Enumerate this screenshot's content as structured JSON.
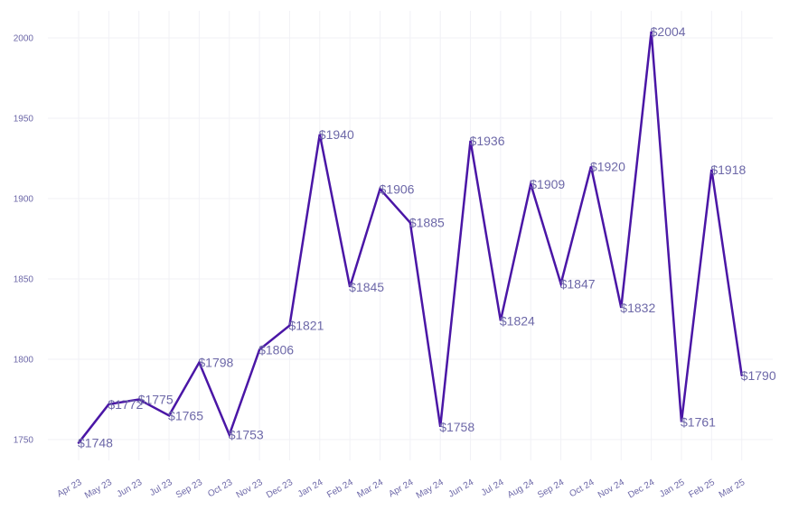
{
  "chart_data": {
    "type": "line",
    "title": "",
    "xlabel": "",
    "ylabel": "",
    "categories": [
      "Apr 23",
      "May 23",
      "Jun 23",
      "Jul 23",
      "Sep 23",
      "Oct 23",
      "Nov 23",
      "Dec 23",
      "Jan 24",
      "Feb 24",
      "Mar 24",
      "Apr 24",
      "May 24",
      "Jun 24",
      "Jul 24",
      "Aug 24",
      "Sep 24",
      "Oct 24",
      "Nov 24",
      "Dec 24",
      "Jan 25",
      "Feb 25",
      "Mar 25"
    ],
    "series": [
      {
        "values": [
          1748,
          1772,
          1775,
          1765,
          1798,
          1753,
          1806,
          1821,
          1940,
          1845,
          1906,
          1885,
          1758,
          1936,
          1824,
          1909,
          1847,
          1920,
          1832,
          2004,
          1761,
          1918,
          1790
        ],
        "color": "#4a16a6"
      }
    ],
    "data_labels": [
      "$1748",
      "$1772",
      "$1775",
      "$1765",
      "$1798",
      "$1753",
      "$1806",
      "$1821",
      "$1940",
      "$1845",
      "$1906",
      "$1885",
      "$1758",
      "$1936",
      "$1824",
      "$1909",
      "$1847",
      "$1920",
      "$1832",
      "$2004",
      "$1761",
      "$1918",
      "$1790"
    ],
    "yticks": [
      1750,
      1800,
      1850,
      1900,
      1950,
      2000
    ],
    "ylim": [
      1735,
      2020
    ],
    "grid": true,
    "legend": "none",
    "colors": {
      "line": "#4a16a6",
      "text": "#6d68a8",
      "grid": "#f1f1f6"
    }
  }
}
